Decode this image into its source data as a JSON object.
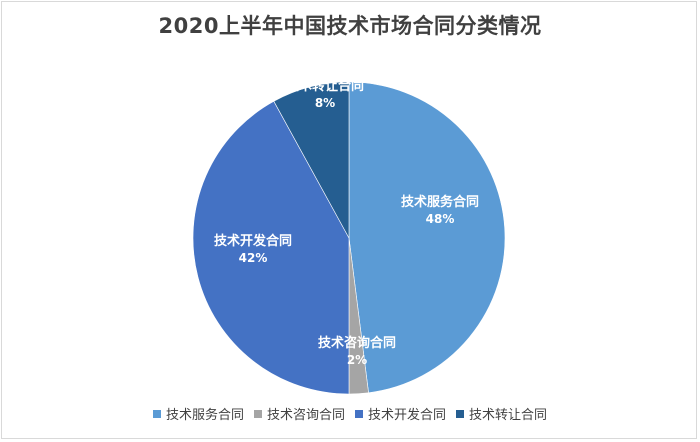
{
  "chart_data": {
    "type": "pie",
    "title": "2020上半年中国技术市场合同分类情况",
    "start_angle_deg": 0,
    "direction": "clockwise",
    "slices": [
      {
        "label": "技术服务合同",
        "value": 48,
        "value_label": "48%",
        "color": "#5B9BD5"
      },
      {
        "label": "技术咨询合同",
        "value": 2,
        "value_label": "2%",
        "color": "#A5A5A5"
      },
      {
        "label": "技术开发合同",
        "value": 42,
        "value_label": "42%",
        "color": "#4472C4"
      },
      {
        "label": "技术转让合同",
        "value": 8,
        "value_label": "8%",
        "color": "#255E91"
      }
    ],
    "legend": {
      "position": "bottom",
      "entries": [
        "技术服务合同",
        "技术咨询合同",
        "技术开发合同",
        "技术转让合同"
      ]
    },
    "data_label_color": "#ffffff"
  }
}
